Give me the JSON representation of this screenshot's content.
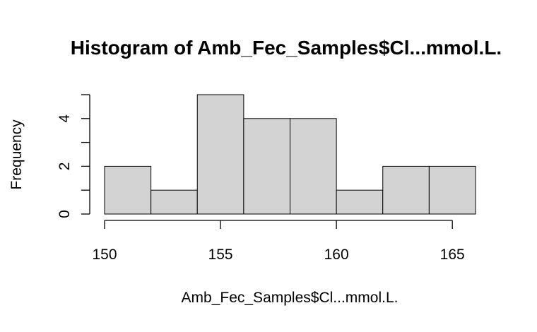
{
  "chart_data": {
    "type": "bar",
    "title": "Histogram of Amb_Fec_Samples$Cl...mmol.L.",
    "xlabel": "Amb_Fec_Samples$Cl...mmol.L.",
    "ylabel": "Frequency",
    "bins": [
      {
        "from": 150,
        "to": 152,
        "count": 2
      },
      {
        "from": 152,
        "to": 154,
        "count": 1
      },
      {
        "from": 154,
        "to": 156,
        "count": 5
      },
      {
        "from": 156,
        "to": 158,
        "count": 4
      },
      {
        "from": 158,
        "to": 160,
        "count": 4
      },
      {
        "from": 160,
        "to": 162,
        "count": 1
      },
      {
        "from": 162,
        "to": 164,
        "count": 2
      },
      {
        "from": 164,
        "to": 166,
        "count": 2
      }
    ],
    "x_ticks": [
      150,
      155,
      160,
      165
    ],
    "y_ticks": [
      0,
      1,
      2,
      3,
      4,
      5
    ],
    "y_tick_labels": [
      "0",
      "",
      "2",
      "",
      "4",
      ""
    ],
    "xlim": [
      150,
      166
    ],
    "ylim": [
      0,
      5
    ],
    "bar_fill": "#d3d3d3",
    "bar_stroke": "#000000",
    "grid": false,
    "legend": "none"
  }
}
